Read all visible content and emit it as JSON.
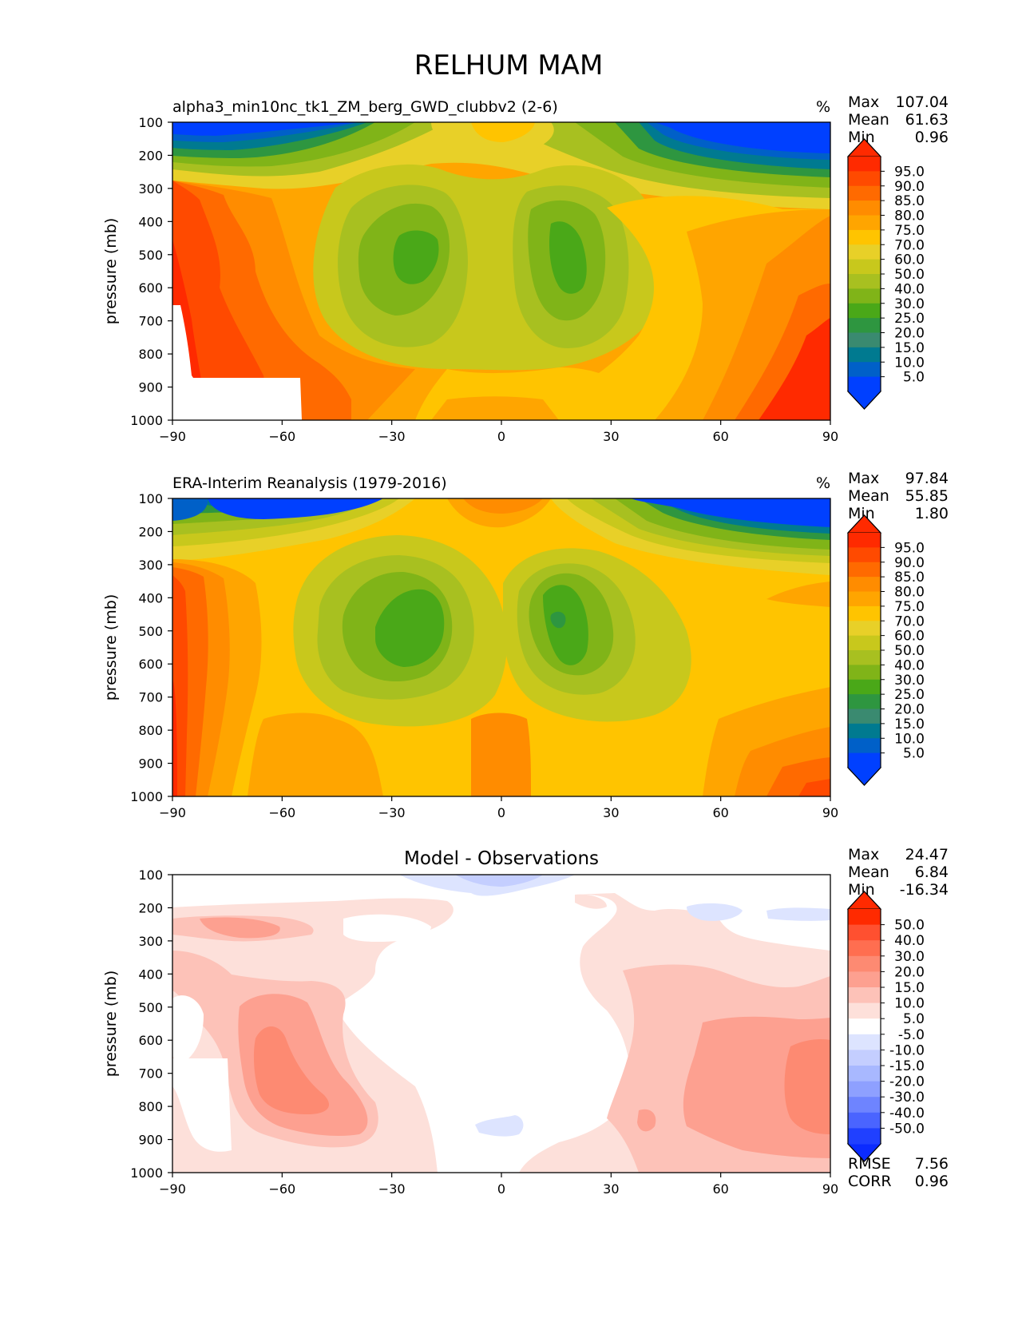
{
  "figure": {
    "title": "RELHUM MAM"
  },
  "chart_data": [
    {
      "type": "heatmap",
      "title": "alpha3_min10nc_tk1_ZM_berg_GWD_clubbv2 (2-6)",
      "units": "%",
      "ylabel": "pressure (mb)",
      "xlabel": "",
      "x_ticks": [
        "−90",
        "−60",
        "−30",
        "0",
        "30",
        "60",
        "90"
      ],
      "y_ticks": [
        "100",
        "200",
        "300",
        "400",
        "500",
        "600",
        "700",
        "800",
        "900",
        "1000"
      ],
      "xlim": [
        -90,
        90
      ],
      "ylim": [
        1000,
        100
      ],
      "stats": [
        {
          "label": "Max",
          "value": "107.04"
        },
        {
          "label": "Mean",
          "value": "61.63"
        },
        {
          "label": "Min",
          "value": "0.96"
        }
      ],
      "colorbar_levels": [
        "95.0",
        "90.0",
        "85.0",
        "80.0",
        "75.0",
        "70.0",
        "60.0",
        "50.0",
        "40.0",
        "30.0",
        "25.0",
        "20.0",
        "15.0",
        "10.0",
        "5.0"
      ],
      "colorbar_colors": [
        "#ff2a00",
        "#ff4a00",
        "#ff6a00",
        "#ff8c00",
        "#ffa500",
        "#ffc400",
        "#e8d028",
        "#c8c81c",
        "#a8c020",
        "#80b418",
        "#4aa818",
        "#2e9640",
        "#3a8a70",
        "#007a90",
        "#0060c8",
        "#0040ff"
      ],
      "extend_max_color": "#ff2a00",
      "extend_min_color": "#0040ff",
      "missing_region": "Antarctic surface below ~870 mb (south of ~55S)",
      "field_description": "Dry (<5%) upper troposphere at high latitudes above 200 mb; moist (70-95%) lower troposphere; dry subtropical minima (~25-30%) near 25S and 20N at 400-600 mb; moist tropical column."
    },
    {
      "type": "heatmap",
      "title": "ERA-Interim Reanalysis (1979-2016)",
      "units": "%",
      "ylabel": "pressure (mb)",
      "xlabel": "",
      "x_ticks": [
        "−90",
        "−60",
        "−30",
        "0",
        "30",
        "60",
        "90"
      ],
      "y_ticks": [
        "100",
        "200",
        "300",
        "400",
        "500",
        "600",
        "700",
        "800",
        "900",
        "1000"
      ],
      "xlim": [
        -90,
        90
      ],
      "ylim": [
        1000,
        100
      ],
      "stats": [
        {
          "label": "Max",
          "value": "97.84"
        },
        {
          "label": "Mean",
          "value": "55.85"
        },
        {
          "label": "Min",
          "value": "1.80"
        }
      ],
      "colorbar_levels": [
        "95.0",
        "90.0",
        "85.0",
        "80.0",
        "75.0",
        "70.0",
        "60.0",
        "50.0",
        "40.0",
        "30.0",
        "25.0",
        "20.0",
        "15.0",
        "10.0",
        "5.0"
      ],
      "colorbar_colors": [
        "#ff2a00",
        "#ff4a00",
        "#ff6a00",
        "#ff8c00",
        "#ffa500",
        "#ffc400",
        "#e8d028",
        "#c8c81c",
        "#a8c020",
        "#80b418",
        "#4aa818",
        "#2e9640",
        "#3a8a70",
        "#007a90",
        "#0060c8",
        "#0040ff"
      ],
      "extend_max_color": "#ff2a00",
      "extend_min_color": "#0040ff",
      "field_description": "Dry upper troposphere at high latitudes above 200 mb; subtropical minima (~25-30%) near 25S and 20N at 400-600 mb; moist near-surface and tropical upper troposphere."
    },
    {
      "type": "heatmap",
      "title": "Model - Observations",
      "units": "",
      "ylabel": "pressure (mb)",
      "xlabel": "",
      "x_ticks": [
        "−90",
        "−60",
        "−30",
        "0",
        "30",
        "60",
        "90"
      ],
      "y_ticks": [
        "100",
        "200",
        "300",
        "400",
        "500",
        "600",
        "700",
        "800",
        "900",
        "1000"
      ],
      "xlim": [
        -90,
        90
      ],
      "ylim": [
        1000,
        100
      ],
      "stats": [
        {
          "label": "Max",
          "value": "24.47"
        },
        {
          "label": "Mean",
          "value": "6.84"
        },
        {
          "label": "Min",
          "value": "-16.34"
        }
      ],
      "extra_stats": [
        {
          "label": "RMSE",
          "value": "7.56"
        },
        {
          "label": "CORR",
          "value": "0.96"
        }
      ],
      "colorbar_levels": [
        "50.0",
        "40.0",
        "30.0",
        "20.0",
        "15.0",
        "10.0",
        "5.0",
        "-5.0",
        "-10.0",
        "-15.0",
        "-20.0",
        "-30.0",
        "-40.0",
        "-50.0"
      ],
      "colorbar_colors": [
        "#ff2a00",
        "#ff5030",
        "#ff6e50",
        "#fd8a72",
        "#fda090",
        "#fdc2b8",
        "#fde0da",
        "#ffffff",
        "#dde4ff",
        "#c4ceff",
        "#a8b8ff",
        "#8ea0ff",
        "#6e84ff",
        "#4a64ff",
        "#2040ff"
      ],
      "extend_max_color": "#ff2a00",
      "extend_min_color": "#0b2bff",
      "field_description": "Mostly positive bias (model moister): 15-20% in SH extratropics 500-850 mb and NH high latitudes 600-900 mb; small negative bias near equator at 100 mb and 850 mb and NH high latitudes near 200 mb."
    }
  ]
}
